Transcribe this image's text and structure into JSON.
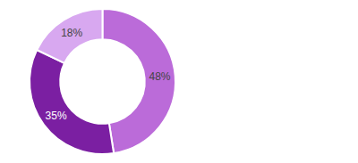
{
  "chart_data": {
    "type": "donut",
    "values": [
      48,
      35,
      18
    ],
    "value_labels": [
      "48%",
      "35%",
      "18%"
    ],
    "colors": [
      "#bb6bd9",
      "#7b1fa2",
      "#d8a8f0"
    ],
    "data_labels": true
  }
}
